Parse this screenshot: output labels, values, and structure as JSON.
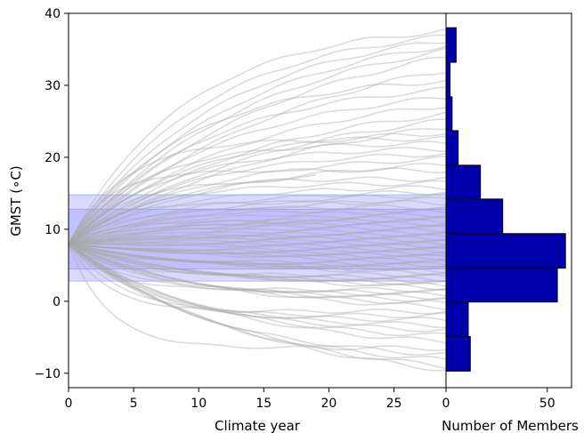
{
  "chart_data": [
    {
      "type": "line",
      "xlabel": "Climate year",
      "ylabel": "GMST ($^\\circ$C)",
      "ylabel_display": "GMST (∘C)",
      "xlim": [
        0,
        29
      ],
      "ylim": [
        -12,
        40
      ],
      "xticks": [
        0,
        5,
        10,
        15,
        20,
        25
      ],
      "yticks": [
        -10,
        0,
        10,
        20,
        30,
        40
      ],
      "start_value": 8,
      "series_color": "#a9a9a9",
      "band_color": "#6666ff",
      "bands": [
        {
          "y0": 2.8,
          "y1": 14.8,
          "opacity": 0.25
        },
        {
          "y0": 4.5,
          "y1": 12.8,
          "opacity": 0.2
        }
      ],
      "member_endpoints": [
        37.5,
        36.8,
        36.2,
        35.5,
        34.8,
        33.9,
        32.1,
        30.6,
        29.4,
        28.3,
        27.2,
        26.0,
        25.1,
        24.2,
        23.4,
        22.6,
        21.9,
        21.2,
        20.5,
        19.8,
        19.0,
        18.2,
        17.0,
        16.4,
        15.8,
        15.2,
        14.8,
        14.2,
        13.7,
        13.1,
        12.7,
        12.4,
        12.0,
        11.7,
        11.4,
        11.1,
        10.8,
        10.5,
        10.2,
        9.9,
        9.6,
        9.3,
        9.0,
        8.8,
        8.5,
        8.2,
        8.0,
        7.7,
        7.5,
        7.2,
        7.0,
        6.7,
        6.5,
        6.2,
        6.0,
        5.7,
        5.5,
        5.2,
        5.0,
        4.7,
        4.5,
        4.2,
        4.0,
        3.7,
        3.4,
        3.1,
        2.8,
        2.5,
        2.2,
        1.9,
        1.6,
        1.3,
        1.0,
        0.6,
        0.2,
        -0.3,
        -0.8,
        -1.4,
        -2.0,
        -2.6,
        -3.3,
        -4.0,
        -4.8,
        -5.6,
        -6.5,
        -7.4,
        -8.2,
        -9.0,
        -9.5
      ],
      "short_member": {
        "end_year": 19,
        "end_value": 18
      }
    },
    {
      "type": "bar",
      "orientation": "horizontal",
      "xlabel": "Number of Members",
      "xlim": [
        0,
        62
      ],
      "xticks": [
        0,
        50
      ],
      "bar_color": "#0000aa",
      "bins": [
        {
          "y0": -9.7,
          "y1": -4.9,
          "count": 12
        },
        {
          "y0": -4.9,
          "y1": -0.1,
          "count": 11
        },
        {
          "y0": -0.1,
          "y1": 4.6,
          "count": 55
        },
        {
          "y0": 4.6,
          "y1": 9.4,
          "count": 59
        },
        {
          "y0": 9.4,
          "y1": 14.2,
          "count": 28
        },
        {
          "y0": 14.2,
          "y1": 18.9,
          "count": 17
        },
        {
          "y0": 18.9,
          "y1": 23.7,
          "count": 6
        },
        {
          "y0": 23.7,
          "y1": 28.4,
          "count": 3
        },
        {
          "y0": 28.4,
          "y1": 33.2,
          "count": 2
        },
        {
          "y0": 33.2,
          "y1": 38.0,
          "count": 5
        }
      ]
    }
  ]
}
